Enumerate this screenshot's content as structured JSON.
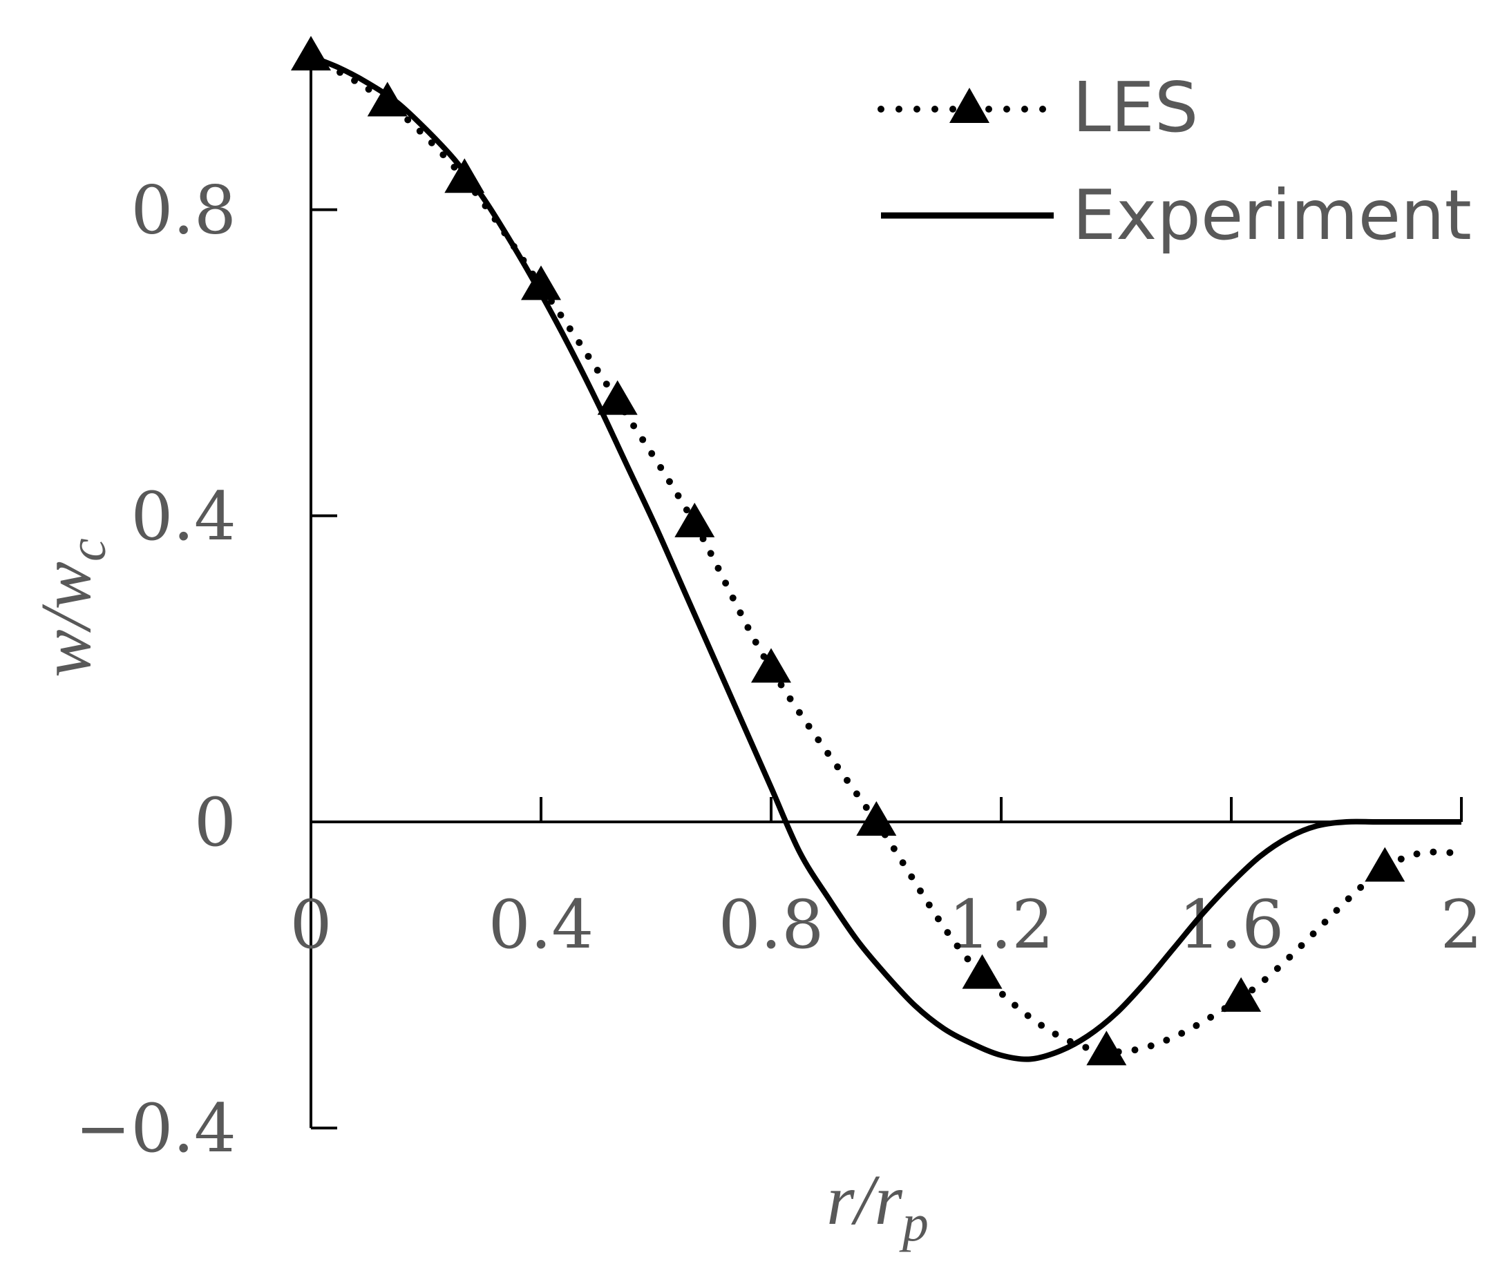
{
  "chart_data": {
    "type": "line",
    "xlabel": {
      "main": "r/r",
      "sub": "p"
    },
    "ylabel": {
      "main": "w/w",
      "sub": "c"
    },
    "xlim": [
      0,
      2
    ],
    "ylim": [
      -0.4,
      1.0
    ],
    "x_ticks": [
      0,
      0.4,
      0.8,
      1.2,
      1.6,
      2
    ],
    "x_tick_labels": [
      "0",
      "0.4",
      "0.8",
      "1.2",
      "1.6",
      "2"
    ],
    "y_ticks": [
      -0.4,
      0,
      0.4,
      0.8
    ],
    "y_tick_labels": [
      "−0.4",
      "0",
      "0.4",
      "0.8"
    ],
    "grid": false,
    "legend_position": "top-right",
    "series": [
      {
        "name": "LES",
        "style": "dotted-triangle",
        "color": "#000000",
        "x": [
          0,
          0.133,
          0.267,
          0.4,
          0.533,
          0.667,
          0.8,
          0.983,
          1.167,
          1.383,
          1.617,
          1.867,
          2.0
        ],
        "y": [
          1.0,
          0.94,
          0.84,
          0.7,
          0.55,
          0.39,
          0.2,
          0.0,
          -0.2,
          -0.3,
          -0.23,
          -0.06,
          -0.04
        ]
      },
      {
        "name": "Experiment",
        "style": "solid",
        "color": "#000000",
        "x": [
          0,
          0.05,
          0.1,
          0.15,
          0.2,
          0.25,
          0.3,
          0.35,
          0.4,
          0.45,
          0.5,
          0.55,
          0.6,
          0.65,
          0.7,
          0.75,
          0.8,
          0.85,
          0.9,
          0.95,
          1.0,
          1.05,
          1.1,
          1.15,
          1.2,
          1.25,
          1.3,
          1.35,
          1.4,
          1.45,
          1.5,
          1.55,
          1.6,
          1.65,
          1.7,
          1.75,
          1.8,
          1.85,
          1.9,
          1.95,
          2.0
        ],
        "y": [
          1.0,
          0.985,
          0.965,
          0.94,
          0.905,
          0.865,
          0.815,
          0.755,
          0.69,
          0.62,
          0.545,
          0.465,
          0.385,
          0.3,
          0.215,
          0.13,
          0.045,
          -0.04,
          -0.1,
          -0.155,
          -0.2,
          -0.24,
          -0.27,
          -0.29,
          -0.305,
          -0.31,
          -0.3,
          -0.28,
          -0.25,
          -0.21,
          -0.165,
          -0.12,
          -0.08,
          -0.045,
          -0.02,
          -0.005,
          0.0,
          0.0,
          0.0,
          0.0,
          0.0
        ]
      }
    ]
  }
}
